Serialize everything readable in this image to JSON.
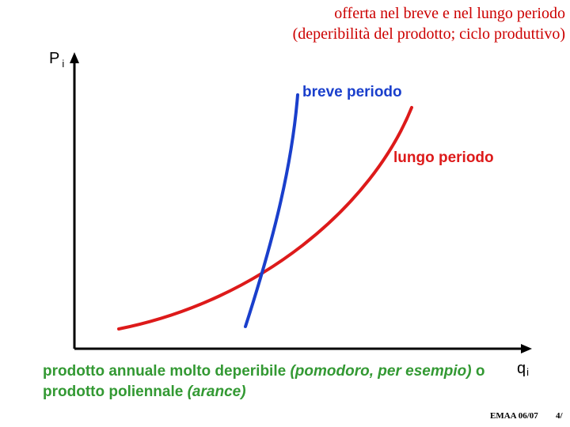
{
  "header": {
    "title_line1": "offerta nel breve e nel lungo periodo",
    "title_line2": "(deperibilità del prodotto; ciclo produttivo)"
  },
  "diagram": {
    "y_axis_label": "P",
    "y_axis_sub": "i",
    "x_axis_label": "q",
    "x_axis_sub": "i",
    "short_run_label": "breve periodo",
    "long_run_label": "lungo periodo"
  },
  "caption": {
    "part1": "prodotto annuale molto deperibile",
    "part2": "(pomodoro, per esempio)",
    "part3": "o prodotto poliennale",
    "part4": "(arance)"
  },
  "footer": {
    "left": "EMAA 06/07",
    "right": "4/"
  },
  "colors": {
    "title": "#cc0000",
    "caption": "#339933",
    "short_run_curve": "#1a3fcc",
    "long_run_curve": "#dd1a1a",
    "axis": "#000000"
  }
}
